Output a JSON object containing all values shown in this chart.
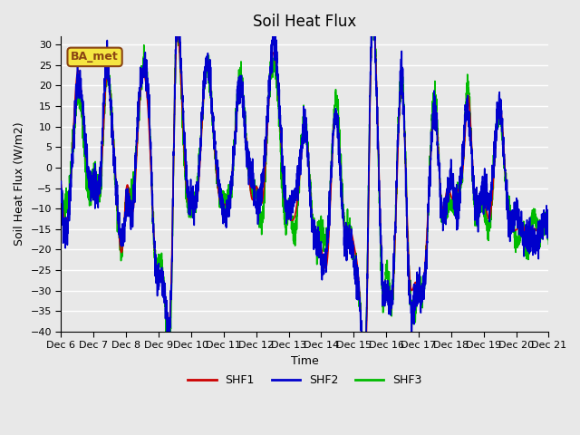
{
  "title": "Soil Heat Flux",
  "xlabel": "Time",
  "ylabel": "Soil Heat Flux (W/m2)",
  "ylim": [
    -40,
    32
  ],
  "yticks": [
    -40,
    -35,
    -30,
    -25,
    -20,
    -15,
    -10,
    -5,
    0,
    5,
    10,
    15,
    20,
    25,
    30
  ],
  "x_labels": [
    "Dec 6",
    "Dec 7",
    "Dec 8",
    "Dec 9",
    "Dec 10",
    "Dec 11",
    "Dec 12",
    "Dec 13",
    "Dec 14",
    "Dec 15",
    "Dec 16",
    "Dec 17",
    "Dec 18",
    "Dec 19",
    "Dec 20",
    "Dec 21"
  ],
  "background_color": "#e8e8e8",
  "plot_bg_color": "#e8e8e8",
  "grid_color": "#ffffff",
  "shf1_color": "#cc0000",
  "shf2_color": "#0000cc",
  "shf3_color": "#00bb00",
  "legend_label": "BA_met",
  "line_width": 1.2,
  "n_points": 3600,
  "days": 15
}
